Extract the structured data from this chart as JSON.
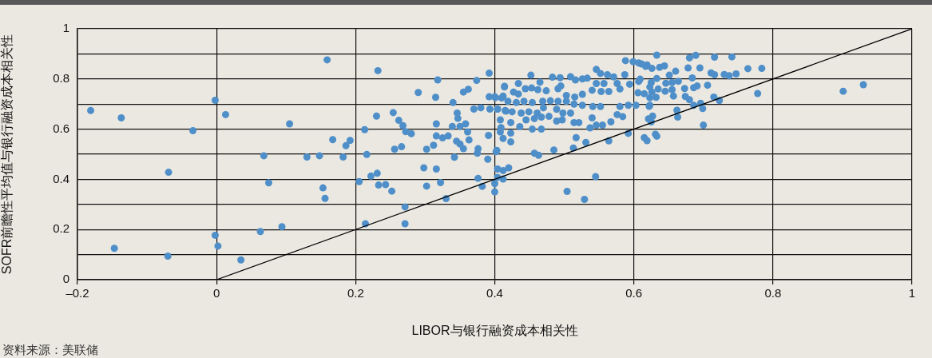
{
  "chart_data": {
    "type": "scatter",
    "xlabel": "LIBOR与银行融资成本相关性",
    "ylabel": "SOFR前瞻性平均值与银行融资成本相关性",
    "annotations": [
      "资料来源：美联储"
    ],
    "xlim": [
      -0.2,
      1
    ],
    "xticks": [
      {
        "value": -0.2,
        "label": "–0.2"
      },
      0,
      0.2,
      0.4,
      0.6,
      0.8,
      1
    ],
    "ylim": [
      0,
      1
    ],
    "yticks": [
      0,
      {
        "value": 0.1,
        "label": null
      },
      0.2,
      {
        "value": 0.3,
        "label": null
      },
      0.4,
      {
        "value": 0.5,
        "label": null
      },
      0.6,
      {
        "value": 0.7,
        "label": null
      },
      0.8,
      {
        "value": 0.9,
        "label": null
      },
      1
    ],
    "grid": true,
    "marker": "circle",
    "series": [
      {
        "color": "#4f8fc9",
        "x": [
          -0.181,
          -0.137,
          -0.034,
          -0.002,
          0.013,
          0.105,
          0.159,
          -0.069,
          -0.147,
          -0.07,
          -0.002,
          0.002,
          0.035,
          0.063,
          0.094,
          0.068,
          0.075,
          0.13,
          0.148,
          0.182,
          0.167,
          0.186,
          0.192,
          0.153,
          0.156,
          0.205,
          0.232,
          0.318,
          0.374,
          0.392,
          0.29,
          0.315,
          0.34,
          0.355,
          0.362,
          0.414,
          0.392,
          0.4,
          0.41,
          0.37,
          0.38,
          0.393,
          0.404,
          0.416,
          0.23,
          0.254,
          0.262,
          0.268,
          0.272,
          0.28,
          0.213,
          0.316,
          0.316,
          0.325,
          0.333,
          0.346,
          0.347,
          0.35,
          0.339,
          0.358,
          0.361,
          0.345,
          0.35,
          0.355,
          0.363,
          0.376,
          0.375,
          0.342,
          0.391,
          0.403,
          0.39,
          0.409,
          0.256,
          0.266,
          0.302,
          0.312,
          0.216,
          0.298,
          0.316,
          0.322,
          0.302,
          0.376,
          0.382,
          0.404,
          0.412,
          0.4,
          0.33,
          0.222,
          0.231,
          0.233,
          0.243,
          0.252,
          0.271,
          0.271,
          0.214,
          0.588,
          0.599,
          0.607,
          0.617,
          0.546,
          0.552,
          0.562,
          0.571,
          0.587,
          0.452,
          0.483,
          0.494,
          0.509,
          0.516,
          0.526,
          0.533,
          0.465,
          0.434,
          0.414,
          0.607,
          0.546,
          0.557,
          0.576,
          0.594,
          0.444,
          0.453,
          0.462,
          0.474,
          0.491,
          0.495,
          0.503,
          0.515,
          0.526,
          0.54,
          0.553,
          0.564,
          0.58,
          0.606,
          0.401,
          0.412,
          0.427,
          0.434,
          0.419,
          0.431,
          0.442,
          0.454,
          0.469,
          0.48,
          0.491,
          0.503,
          0.514,
          0.526,
          0.541,
          0.552,
          0.58,
          0.592,
          0.603,
          0.622,
          0.404,
          0.415,
          0.425,
          0.438,
          0.449,
          0.461,
          0.47,
          0.489,
          0.498,
          0.509,
          0.576,
          0.584,
          0.408,
          0.423,
          0.436,
          0.445,
          0.457,
          0.467,
          0.478,
          0.489,
          0.497,
          0.514,
          0.521,
          0.54,
          0.546,
          0.555,
          0.567,
          0.537,
          0.454,
          0.467,
          0.408,
          0.423,
          0.412,
          0.423,
          0.402,
          0.457,
          0.463,
          0.485,
          0.517,
          0.531,
          0.513,
          0.564,
          0.592,
          0.42,
          0.404,
          0.412,
          0.4,
          0.545,
          0.504,
          0.529,
          0.619,
          0.625,
          0.633,
          0.626,
          0.633,
          0.68,
          0.689,
          0.716,
          0.741,
          0.611,
          0.619,
          0.626,
          0.637,
          0.644,
          0.678,
          0.695,
          0.764,
          0.784,
          0.711,
          0.716,
          0.73,
          0.737,
          0.747,
          0.66,
          0.651,
          0.609,
          0.633,
          0.625,
          0.646,
          0.655,
          0.664,
          0.684,
          0.623,
          0.635,
          0.645,
          0.655,
          0.673,
          0.686,
          0.691,
          0.706,
          0.615,
          0.623,
          0.632,
          0.657,
          0.674,
          0.68,
          0.715,
          0.723,
          0.778,
          0.623,
          0.686,
          0.696,
          0.699,
          0.662,
          0.663,
          0.621,
          0.627,
          0.7,
          0.615,
          0.631,
          0.901,
          0.93
        ],
        "values": [
          0.674,
          0.645,
          0.594,
          0.715,
          0.658,
          0.621,
          0.876,
          0.428,
          0.125,
          0.094,
          0.177,
          0.134,
          0.079,
          0.192,
          0.211,
          0.494,
          0.386,
          0.489,
          0.494,
          0.489,
          0.558,
          0.534,
          0.555,
          0.366,
          0.324,
          0.391,
          0.833,
          0.796,
          0.794,
          0.823,
          0.746,
          0.727,
          0.706,
          0.748,
          0.759,
          0.768,
          0.729,
          0.729,
          0.724,
          0.68,
          0.685,
          0.68,
          0.68,
          0.672,
          0.652,
          0.666,
          0.635,
          0.614,
          0.59,
          0.582,
          0.598,
          0.621,
          0.573,
          0.565,
          0.573,
          0.664,
          0.643,
          0.611,
          0.611,
          0.621,
          0.589,
          0.552,
          0.541,
          0.522,
          0.557,
          0.522,
          0.504,
          0.488,
          0.575,
          0.515,
          0.48,
          0.606,
          0.52,
          0.53,
          0.52,
          0.536,
          0.499,
          0.446,
          0.441,
          0.387,
          0.373,
          0.404,
          0.372,
          0.441,
          0.435,
          0.383,
          0.323,
          0.413,
          0.424,
          0.377,
          0.379,
          0.353,
          0.29,
          0.223,
          0.223,
          0.873,
          0.869,
          0.864,
          0.85,
          0.838,
          0.822,
          0.817,
          0.808,
          0.817,
          0.815,
          0.807,
          0.805,
          0.809,
          0.796,
          0.8,
          0.803,
          0.787,
          0.782,
          0.771,
          0.79,
          0.782,
          0.782,
          0.782,
          0.779,
          0.761,
          0.764,
          0.757,
          0.753,
          0.761,
          0.772,
          0.734,
          0.728,
          0.739,
          0.755,
          0.75,
          0.75,
          0.76,
          0.745,
          0.726,
          0.732,
          0.748,
          0.74,
          0.711,
          0.706,
          0.711,
          0.706,
          0.711,
          0.713,
          0.711,
          0.711,
          0.7,
          0.695,
          0.69,
          0.69,
          0.69,
          0.695,
          0.695,
          0.691,
          0.68,
          0.674,
          0.669,
          0.664,
          0.669,
          0.664,
          0.685,
          0.679,
          0.664,
          0.664,
          0.658,
          0.65,
          0.637,
          0.626,
          0.61,
          0.637,
          0.642,
          0.648,
          0.651,
          0.632,
          0.637,
          0.626,
          0.626,
          0.645,
          0.616,
          0.616,
          0.629,
          0.605,
          0.6,
          0.6,
          0.589,
          0.584,
          0.563,
          0.549,
          0.51,
          0.504,
          0.496,
          0.517,
          0.566,
          0.547,
          0.525,
          0.553,
          0.583,
          0.446,
          0.408,
          0.401,
          0.35,
          0.411,
          0.352,
          0.32,
          0.554,
          0.629,
          0.572,
          0.748,
          0.895,
          0.884,
          0.894,
          0.887,
          0.888,
          0.86,
          0.856,
          0.842,
          0.846,
          0.852,
          0.844,
          0.844,
          0.841,
          0.842,
          0.824,
          0.817,
          0.818,
          0.813,
          0.82,
          0.831,
          0.815,
          0.799,
          0.802,
          0.786,
          0.783,
          0.786,
          0.791,
          0.804,
          0.768,
          0.76,
          0.751,
          0.757,
          0.762,
          0.765,
          0.772,
          0.775,
          0.741,
          0.725,
          0.727,
          0.732,
          0.73,
          0.717,
          0.728,
          0.714,
          0.742,
          0.695,
          0.695,
          0.703,
          0.682,
          0.675,
          0.648,
          0.641,
          0.652,
          0.616,
          0.566,
          0.58,
          0.751,
          0.777
        ]
      },
      {
        "type": "line",
        "color": "#000000",
        "marker": "none",
        "x": [
          0,
          1
        ],
        "values": [
          0,
          1
        ]
      }
    ]
  }
}
